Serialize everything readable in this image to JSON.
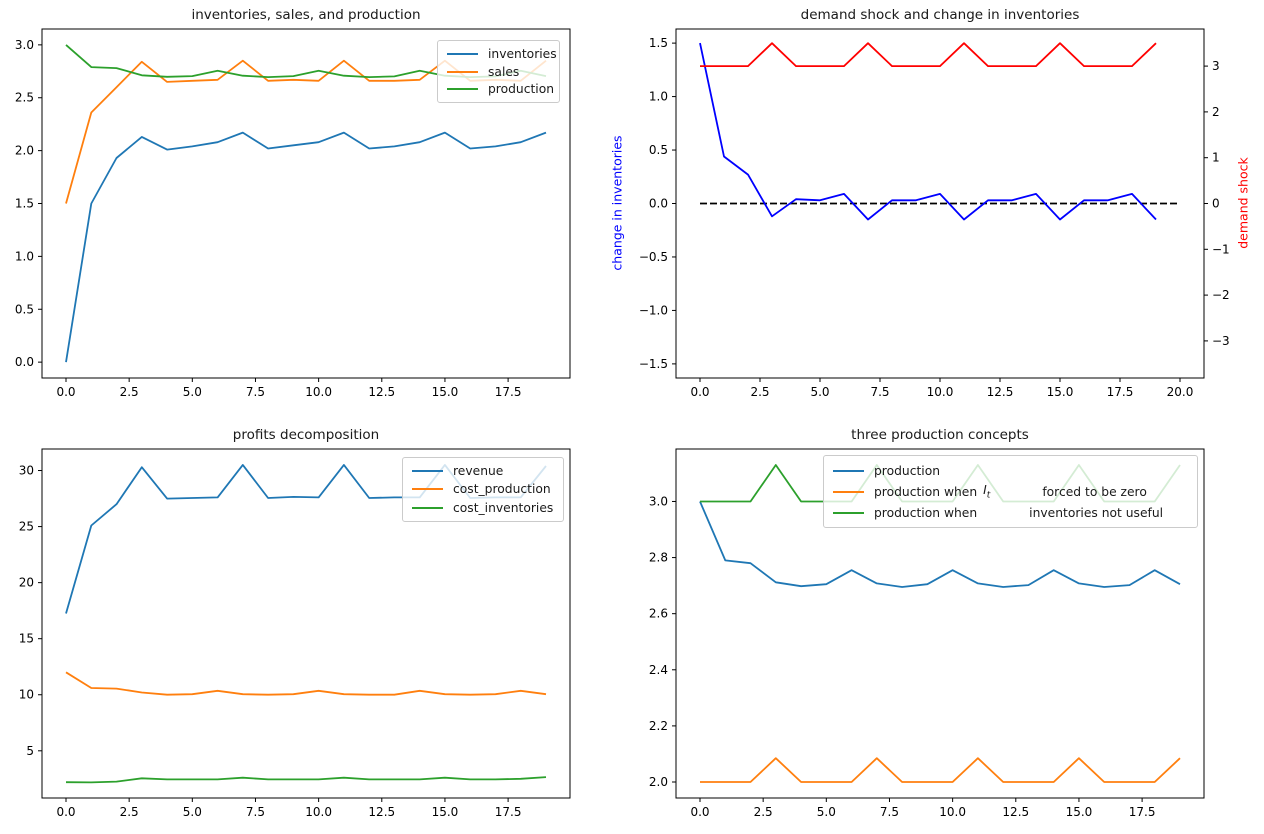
{
  "figure": {
    "background": "#ffffff"
  },
  "chart_data": [
    {
      "type": "line",
      "title": "inventories, sales, and production",
      "xlim": [
        -0.95,
        19.95
      ],
      "ylim": [
        -0.15,
        3.15
      ],
      "grid": false,
      "legend_position": "upper right",
      "xtick_values": [
        0,
        2.5,
        5,
        7.5,
        10,
        12.5,
        15,
        17.5
      ],
      "xtick_labels": [
        "0.0",
        "2.5",
        "5.0",
        "7.5",
        "10.0",
        "12.5",
        "15.0",
        "17.5"
      ],
      "ytick_values": [
        0,
        0.5,
        1,
        1.5,
        2,
        2.5,
        3
      ],
      "ytick_labels": [
        "0.0",
        "0.5",
        "1.0",
        "1.5",
        "2.0",
        "2.5",
        "3.0"
      ],
      "series": [
        {
          "name": "inventories",
          "color": "#1f77b4",
          "values": [
            0.0,
            1.5,
            1.93,
            2.13,
            2.01,
            2.04,
            2.08,
            2.17,
            2.02,
            2.05,
            2.08,
            2.17,
            2.02,
            2.04,
            2.08,
            2.17,
            2.02,
            2.04,
            2.08,
            2.17
          ]
        },
        {
          "name": "sales",
          "color": "#ff7f0e",
          "values": [
            1.5,
            2.36,
            2.6,
            2.84,
            2.65,
            2.66,
            2.67,
            2.85,
            2.66,
            2.67,
            2.66,
            2.85,
            2.66,
            2.66,
            2.67,
            2.85,
            2.66,
            2.67,
            2.66,
            2.85
          ]
        },
        {
          "name": "production",
          "color": "#2ca02c",
          "values": [
            3.0,
            2.79,
            2.78,
            2.712,
            2.698,
            2.705,
            2.755,
            2.708,
            2.695,
            2.705,
            2.755,
            2.708,
            2.695,
            2.702,
            2.755,
            2.708,
            2.695,
            2.702,
            2.755,
            2.705
          ]
        }
      ]
    },
    {
      "type": "line",
      "title": "demand shock and change in inventories",
      "xlim": [
        -1,
        21
      ],
      "ylim": [
        -1.632,
        1.632
      ],
      "ylim_right": [
        -3.81,
        3.81
      ],
      "grid": false,
      "ylabel_left": "change in inventories",
      "ylabel_left_color": "#0000ff",
      "ylabel_right": "demand shock",
      "ylabel_right_color": "#ff0000",
      "xtick_values": [
        0,
        2.5,
        5,
        7.5,
        10,
        12.5,
        15,
        17.5,
        20
      ],
      "xtick_labels": [
        "0.0",
        "2.5",
        "5.0",
        "7.5",
        "10.0",
        "12.5",
        "15.0",
        "17.5",
        "20.0"
      ],
      "ytick_values": [
        -1.5,
        -1,
        -0.5,
        0,
        0.5,
        1,
        1.5
      ],
      "ytick_labels": [
        "−1.5",
        "−1.0",
        "−0.5",
        "0.0",
        "0.5",
        "1.0",
        "1.5"
      ],
      "ytick_values_right": [
        -3,
        -2,
        -1,
        0,
        1,
        2,
        3
      ],
      "ytick_labels_right": [
        "−3",
        "−2",
        "−1",
        "0",
        "1",
        "2",
        "3"
      ],
      "series": [
        {
          "name": "zero line",
          "color": "#000000",
          "dashed": true,
          "x": [
            0,
            20
          ],
          "values": [
            0,
            0
          ]
        },
        {
          "name": "change in inventories",
          "color": "#0000ff",
          "values": [
            1.5,
            0.44,
            0.27,
            -0.12,
            0.04,
            0.03,
            0.09,
            -0.15,
            0.03,
            0.03,
            0.09,
            -0.15,
            0.03,
            0.03,
            0.09,
            -0.15,
            0.03,
            0.03,
            0.09,
            -0.15
          ]
        },
        {
          "name": "demand shock",
          "color": "#ff0000",
          "axis": "right",
          "values": [
            3,
            3,
            3,
            3.5,
            3,
            3,
            3,
            3.5,
            3,
            3,
            3,
            3.5,
            3,
            3,
            3,
            3.5,
            3,
            3,
            3,
            3.5
          ]
        }
      ]
    },
    {
      "type": "line",
      "title": "profits decomposition",
      "xlim": [
        -0.95,
        19.95
      ],
      "ylim": [
        0.79,
        31.92
      ],
      "grid": false,
      "legend_position": "upper right",
      "xtick_values": [
        0,
        2.5,
        5,
        7.5,
        10,
        12.5,
        15,
        17.5
      ],
      "xtick_labels": [
        "0.0",
        "2.5",
        "5.0",
        "7.5",
        "10.0",
        "12.5",
        "15.0",
        "17.5"
      ],
      "ytick_values": [
        5,
        10,
        15,
        20,
        25,
        30
      ],
      "ytick_labels": [
        "5",
        "10",
        "15",
        "20",
        "25",
        "30"
      ],
      "series": [
        {
          "name": "revenue",
          "color": "#1f77b4",
          "values": [
            17.25,
            25.1,
            27.0,
            30.3,
            27.5,
            27.55,
            27.6,
            30.5,
            27.55,
            27.65,
            27.6,
            30.5,
            27.55,
            27.6,
            27.6,
            30.5,
            27.55,
            27.6,
            27.6,
            30.4
          ]
        },
        {
          "name": "cost_production",
          "color": "#ff7f0e",
          "values": [
            12.0,
            10.6,
            10.55,
            10.2,
            10.0,
            10.05,
            10.35,
            10.05,
            10.0,
            10.05,
            10.35,
            10.05,
            10.0,
            10.0,
            10.35,
            10.05,
            10.0,
            10.05,
            10.35,
            10.05
          ]
        },
        {
          "name": "cost_inventories",
          "color": "#2ca02c",
          "values": [
            2.2,
            2.18,
            2.25,
            2.55,
            2.45,
            2.45,
            2.45,
            2.6,
            2.45,
            2.45,
            2.45,
            2.6,
            2.45,
            2.45,
            2.45,
            2.6,
            2.45,
            2.45,
            2.5,
            2.65
          ]
        }
      ]
    },
    {
      "type": "line",
      "title": "three production concepts",
      "xlim": [
        -0.95,
        19.95
      ],
      "ylim": [
        1.943,
        3.187
      ],
      "grid": false,
      "legend_position": "upper center",
      "xtick_values": [
        0,
        2.5,
        5,
        7.5,
        10,
        12.5,
        15,
        17.5
      ],
      "xtick_labels": [
        "0.0",
        "2.5",
        "5.0",
        "7.5",
        "10.0",
        "12.5",
        "15.0",
        "17.5"
      ],
      "ytick_values": [
        2.0,
        2.2,
        2.4,
        2.6,
        2.8,
        3.0
      ],
      "ytick_labels": [
        "2.0",
        "2.2",
        "2.4",
        "2.6",
        "2.8",
        "3.0"
      ],
      "legend": {
        "item1": {
          "pre": "production when",
          "math_base": "I",
          "math_sub": "t",
          "post": "forced to be zero"
        },
        "item2": {
          "pre": "production when",
          "post": "inventories not useful"
        }
      },
      "series": [
        {
          "name": "production",
          "color": "#1f77b4",
          "values": [
            3.0,
            2.79,
            2.78,
            2.712,
            2.698,
            2.705,
            2.755,
            2.708,
            2.695,
            2.705,
            2.755,
            2.708,
            2.695,
            2.702,
            2.755,
            2.708,
            2.695,
            2.702,
            2.755,
            2.705
          ]
        },
        {
          "name": "production when I_t forced to be zero",
          "color": "#ff7f0e",
          "values": [
            2.0,
            2.0,
            2.0,
            2.085,
            2.0,
            2.0,
            2.0,
            2.085,
            2.0,
            2.0,
            2.0,
            2.085,
            2.0,
            2.0,
            2.0,
            2.085,
            2.0,
            2.0,
            2.0,
            2.085
          ]
        },
        {
          "name": "production when inventories not useful",
          "color": "#2ca02c",
          "values": [
            3.0,
            3.0,
            3.0,
            3.13,
            3.0,
            3.0,
            3.0,
            3.13,
            3.0,
            3.0,
            3.0,
            3.13,
            3.0,
            3.0,
            3.0,
            3.13,
            3.0,
            3.0,
            3.0,
            3.13
          ]
        }
      ]
    }
  ]
}
